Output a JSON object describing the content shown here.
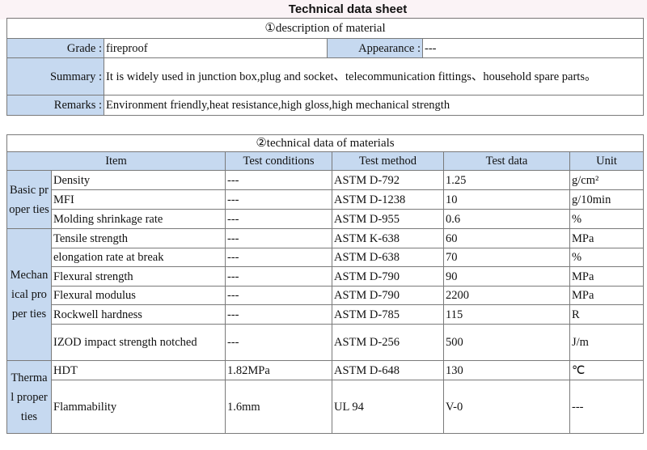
{
  "title": "Technical data sheet",
  "description": {
    "caption": "①description of material",
    "grade_label": "Grade :",
    "grade": "fireproof",
    "appearance_label": "Appearance :",
    "appearance": "---",
    "summary_label": "Summary :",
    "summary": "It is widely used in junction box,plug and socket、telecommunication fittings、household spare parts。",
    "remarks_label": "Remarks :",
    "remarks": "Environment friendly,heat resistance,high gloss,high mechanical strength"
  },
  "technical": {
    "caption": "②technical data of materials",
    "headers": [
      "Item",
      "Test conditions",
      "Test method",
      "Test data",
      "Unit"
    ],
    "groups": [
      "Basic proper ties",
      "Mechan ical proper ties",
      "Therma l proper ties"
    ],
    "rows": [
      [
        "Density",
        "---",
        "ASTM D-792",
        "1.25",
        "g/cm²"
      ],
      [
        "MFI",
        "---",
        "ASTM D-1238",
        "10",
        "g/10min"
      ],
      [
        "Molding shrinkage rate",
        "---",
        "ASTM D-955",
        "0.6",
        "%"
      ],
      [
        "Tensile strength",
        "---",
        "ASTM K-638",
        "60",
        "MPa"
      ],
      [
        "elongation rate at break",
        "---",
        "ASTM D-638",
        "70",
        "%"
      ],
      [
        "Flexural strength",
        "---",
        "ASTM D-790",
        "90",
        "MPa"
      ],
      [
        "Flexural modulus",
        "---",
        "ASTM D-790",
        "2200",
        "MPa"
      ],
      [
        "Rockwell hardness",
        "---",
        "ASTM D-785",
        "115",
        "R"
      ],
      [
        "IZOD impact strength notched",
        "---",
        "ASTM D-256",
        "500",
        "J/m"
      ],
      [
        "HDT",
        "1.82MPa",
        "ASTM D-648",
        "130",
        "℃"
      ],
      [
        "Flammability",
        "1.6mm",
        "UL 94",
        "V-0",
        "---"
      ]
    ]
  }
}
